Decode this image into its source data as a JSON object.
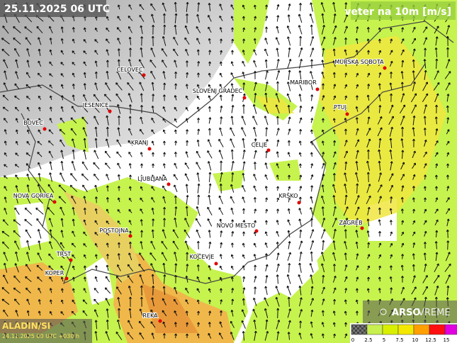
{
  "header": {
    "title": "25.11.2025 06 UTC",
    "variable": "veter na 10m [m/s]"
  },
  "model": {
    "name": "ALADIN/SI",
    "run": "24.11.2025 00 UTC +030 h"
  },
  "brand": {
    "arso": "ARSO",
    "vreme": "VREME"
  },
  "cities": [
    "CELOVEC",
    "SLOVENJ GRADEC",
    "MARIBOR",
    "MURSKA SOBOTA",
    "JESENICE",
    "BOVEC",
    "PTUJ",
    "KRANJ",
    "CELJE",
    "LJUBLJANA",
    "NOVA GORICA",
    "KRŠKO",
    "ZAGREB",
    "POSTOJNA",
    "NOVO MESTO",
    "KOČEVJE",
    "TRST",
    "KOPER",
    "REKA"
  ],
  "legend": {
    "ticks": [
      0,
      2.5,
      5,
      7.5,
      10,
      12.5,
      15
    ],
    "colors": [
      "#555555",
      "#c8f050",
      "#d8f000",
      "#f5e800",
      "#ffa000",
      "#ff1010",
      "#e000e0"
    ]
  }
}
